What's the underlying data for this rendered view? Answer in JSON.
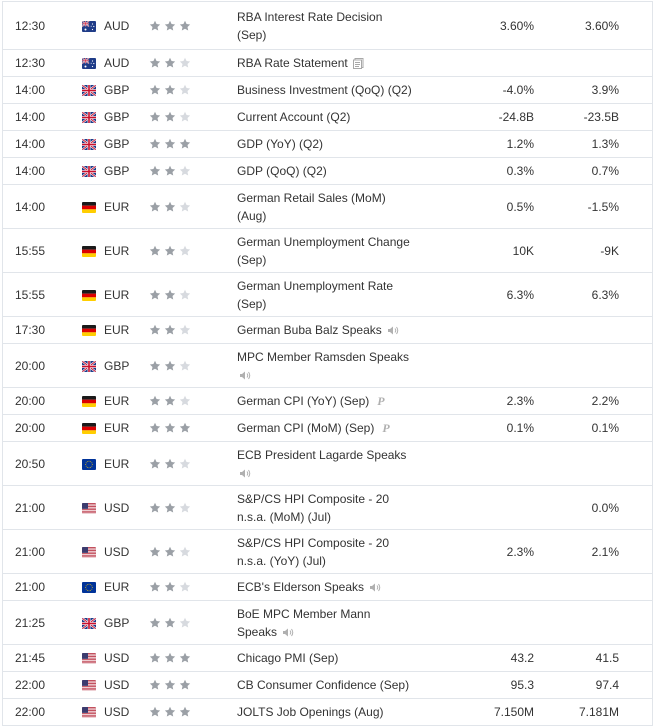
{
  "colors": {
    "border": "#e1e5ea",
    "text": "#333333",
    "star_active": "#9ba0a6",
    "star_inactive": "#d7dadf",
    "icon_gray": "#b0b0b0"
  },
  "rows": [
    {
      "time": "12:30",
      "flag": "au-flag",
      "currency": "AUD",
      "importance": 3,
      "event_line1": "RBA Interest Rate Decision",
      "event_line2": "(Sep)",
      "actual": "3.60%",
      "previous": "3.60%",
      "icon": ""
    },
    {
      "time": "12:30",
      "flag": "au-flag",
      "currency": "AUD",
      "importance": 2,
      "event_line1": "RBA Rate Statement",
      "event_line2": "",
      "actual": "",
      "previous": "",
      "icon": "document-icon"
    },
    {
      "time": "14:00",
      "flag": "gb-flag",
      "currency": "GBP",
      "importance": 2,
      "event_line1": "Business Investment (QoQ) (Q2)",
      "event_line2": "",
      "actual": "-4.0%",
      "previous": "3.9%",
      "icon": ""
    },
    {
      "time": "14:00",
      "flag": "gb-flag",
      "currency": "GBP",
      "importance": 2,
      "event_line1": "Current Account (Q2)",
      "event_line2": "",
      "actual": "-24.8B",
      "previous": "-23.5B",
      "icon": ""
    },
    {
      "time": "14:00",
      "flag": "gb-flag",
      "currency": "GBP",
      "importance": 3,
      "event_line1": "GDP (YoY) (Q2)",
      "event_line2": "",
      "actual": "1.2%",
      "previous": "1.3%",
      "icon": ""
    },
    {
      "time": "14:00",
      "flag": "gb-flag",
      "currency": "GBP",
      "importance": 2,
      "event_line1": "GDP (QoQ) (Q2)",
      "event_line2": "",
      "actual": "0.3%",
      "previous": "0.7%",
      "icon": ""
    },
    {
      "time": "14:00",
      "flag": "de-flag",
      "currency": "EUR",
      "importance": 2,
      "event_line1": "German Retail Sales (MoM)",
      "event_line2": "(Aug)",
      "actual": "0.5%",
      "previous": "-1.5%",
      "icon": ""
    },
    {
      "time": "15:55",
      "flag": "de-flag",
      "currency": "EUR",
      "importance": 2,
      "event_line1": "German Unemployment Change",
      "event_line2": "(Sep)",
      "actual": "10K",
      "previous": "-9K",
      "icon": ""
    },
    {
      "time": "15:55",
      "flag": "de-flag",
      "currency": "EUR",
      "importance": 2,
      "event_line1": "German Unemployment Rate",
      "event_line2": "(Sep)",
      "actual": "6.3%",
      "previous": "6.3%",
      "icon": ""
    },
    {
      "time": "17:30",
      "flag": "de-flag",
      "currency": "EUR",
      "importance": 2,
      "event_line1": "German Buba Balz Speaks",
      "event_line2": "",
      "actual": "",
      "previous": "",
      "icon": "speaker-icon"
    },
    {
      "time": "20:00",
      "flag": "gb-flag",
      "currency": "GBP",
      "importance": 2,
      "event_line1": "MPC Member Ramsden Speaks",
      "event_line2": "",
      "actual": "",
      "previous": "",
      "icon": "speaker-icon",
      "icon_below": true
    },
    {
      "time": "20:00",
      "flag": "de-flag",
      "currency": "EUR",
      "importance": 2,
      "event_line1": "German CPI (YoY) (Sep)",
      "event_line2": "",
      "actual": "2.3%",
      "previous": "2.2%",
      "icon": "preliminary-icon"
    },
    {
      "time": "20:00",
      "flag": "de-flag",
      "currency": "EUR",
      "importance": 3,
      "event_line1": "German CPI (MoM) (Sep)",
      "event_line2": "",
      "actual": "0.1%",
      "previous": "0.1%",
      "icon": "preliminary-icon"
    },
    {
      "time": "20:50",
      "flag": "eu-flag",
      "currency": "EUR",
      "importance": 2,
      "event_line1": "ECB President Lagarde Speaks",
      "event_line2": "",
      "actual": "",
      "previous": "",
      "icon": "speaker-icon",
      "icon_below": true
    },
    {
      "time": "21:00",
      "flag": "us-flag",
      "currency": "USD",
      "importance": 2,
      "event_line1": "S&P/CS HPI Composite - 20",
      "event_line2": "n.s.a. (MoM) (Jul)",
      "actual": "",
      "previous": "0.0%",
      "icon": ""
    },
    {
      "time": "21:00",
      "flag": "us-flag",
      "currency": "USD",
      "importance": 2,
      "event_line1": "S&P/CS HPI Composite - 20",
      "event_line2": "n.s.a. (YoY) (Jul)",
      "actual": "2.3%",
      "previous": "2.1%",
      "icon": ""
    },
    {
      "time": "21:00",
      "flag": "eu-flag",
      "currency": "EUR",
      "importance": 2,
      "event_line1": "ECB's Elderson Speaks",
      "event_line2": "",
      "actual": "",
      "previous": "",
      "icon": "speaker-icon"
    },
    {
      "time": "21:25",
      "flag": "gb-flag",
      "currency": "GBP",
      "importance": 2,
      "event_line1": "BoE MPC Member Mann",
      "event_line2": "Speaks",
      "actual": "",
      "previous": "",
      "icon": "speaker-icon",
      "icon_line2": true
    },
    {
      "time": "21:45",
      "flag": "us-flag",
      "currency": "USD",
      "importance": 3,
      "event_line1": "Chicago PMI (Sep)",
      "event_line2": "",
      "actual": "43.2",
      "previous": "41.5",
      "icon": ""
    },
    {
      "time": "22:00",
      "flag": "us-flag",
      "currency": "USD",
      "importance": 3,
      "event_line1": "CB Consumer Confidence (Sep)",
      "event_line2": "",
      "actual": "95.3",
      "previous": "97.4",
      "icon": ""
    },
    {
      "time": "22:00",
      "flag": "us-flag",
      "currency": "USD",
      "importance": 3,
      "event_line1": "JOLTS Job Openings (Aug)",
      "event_line2": "",
      "actual": "7.150M",
      "previous": "7.181M",
      "icon": ""
    }
  ]
}
